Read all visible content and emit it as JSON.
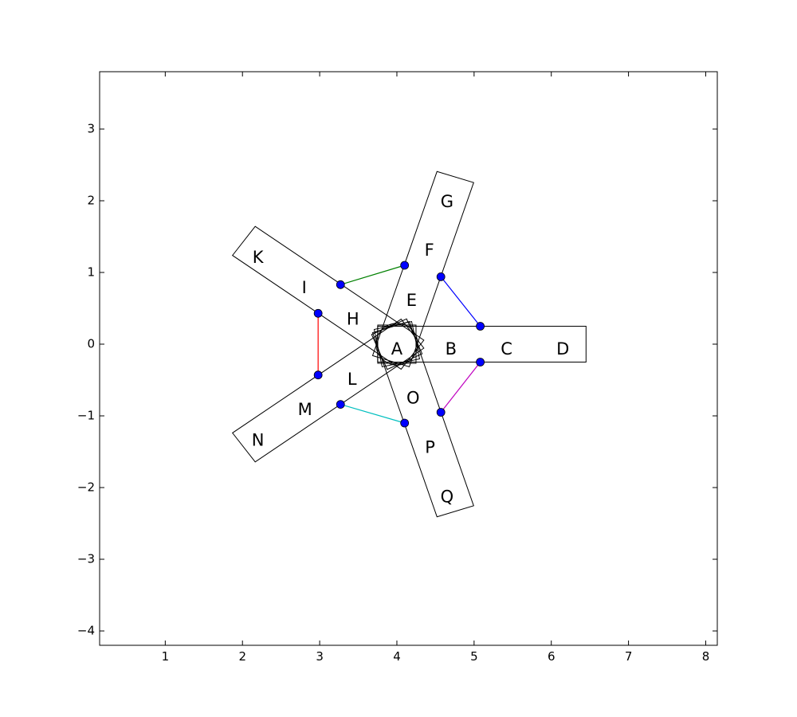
{
  "chart_data": {
    "type": "scatter",
    "title": "",
    "xlabel": "",
    "ylabel": "",
    "xlim": [
      0.15,
      8.15
    ],
    "ylim": [
      -4.2,
      3.8
    ],
    "grid": false,
    "x_ticks": [
      {
        "value": 1,
        "label": "1"
      },
      {
        "value": 2,
        "label": "2"
      },
      {
        "value": 3,
        "label": "3"
      },
      {
        "value": 4,
        "label": "4"
      },
      {
        "value": 5,
        "label": "5"
      },
      {
        "value": 6,
        "label": "6"
      },
      {
        "value": 7,
        "label": "7"
      },
      {
        "value": 8,
        "label": "8"
      }
    ],
    "y_ticks": [
      {
        "value": 3,
        "label": "3"
      },
      {
        "value": 2,
        "label": "2"
      },
      {
        "value": 1,
        "label": "1"
      },
      {
        "value": 0,
        "label": "0"
      },
      {
        "value": -1,
        "label": "−1"
      },
      {
        "value": -2,
        "label": "−2"
      },
      {
        "value": -3,
        "label": "−3"
      },
      {
        "value": -4,
        "label": "−4"
      }
    ],
    "labels": [
      {
        "text": "A",
        "x": 4.0,
        "y": -0.08
      },
      {
        "text": "B",
        "x": 4.7,
        "y": -0.08
      },
      {
        "text": "C",
        "x": 5.42,
        "y": -0.08
      },
      {
        "text": "D",
        "x": 6.15,
        "y": -0.08
      },
      {
        "text": "E",
        "x": 4.19,
        "y": 0.6
      },
      {
        "text": "F",
        "x": 4.42,
        "y": 1.3
      },
      {
        "text": "G",
        "x": 4.65,
        "y": 1.98
      },
      {
        "text": "H",
        "x": 3.43,
        "y": 0.34
      },
      {
        "text": "I",
        "x": 2.8,
        "y": 0.78
      },
      {
        "text": "K",
        "x": 2.2,
        "y": 1.2
      },
      {
        "text": "L",
        "x": 3.42,
        "y": -0.5
      },
      {
        "text": "M",
        "x": 2.81,
        "y": -0.92
      },
      {
        "text": "N",
        "x": 2.2,
        "y": -1.35
      },
      {
        "text": "O",
        "x": 4.21,
        "y": -0.76
      },
      {
        "text": "P",
        "x": 4.43,
        "y": -1.45
      },
      {
        "text": "Q",
        "x": 4.65,
        "y": -2.14
      }
    ],
    "points": [
      {
        "x": 5.08,
        "y": 0.25
      },
      {
        "x": 5.08,
        "y": -0.25
      },
      {
        "x": 4.57,
        "y": 0.94
      },
      {
        "x": 4.1,
        "y": 1.1
      },
      {
        "x": 3.27,
        "y": 0.83
      },
      {
        "x": 2.98,
        "y": 0.43
      },
      {
        "x": 2.98,
        "y": -0.43
      },
      {
        "x": 3.27,
        "y": -0.84
      },
      {
        "x": 4.1,
        "y": -1.1
      },
      {
        "x": 4.57,
        "y": -0.95
      }
    ],
    "connectors": [
      {
        "from": 0,
        "to": 2,
        "color": "#0000ff"
      },
      {
        "from": 3,
        "to": 4,
        "color": "#008000"
      },
      {
        "from": 5,
        "to": 6,
        "color": "#ff0000"
      },
      {
        "from": 7,
        "to": 8,
        "color": "#00bfbf"
      },
      {
        "from": 9,
        "to": 1,
        "color": "#bf00bf"
      }
    ],
    "arms": [
      {
        "center": [
          4.0,
          0.0
        ],
        "angle_deg": 0,
        "length": 2.45,
        "half_width": 0.25
      },
      {
        "center": [
          4.0,
          0.0
        ],
        "angle_deg": 72,
        "length": 2.45,
        "half_width": 0.25
      },
      {
        "center": [
          4.0,
          0.0
        ],
        "angle_deg": 144,
        "length": 2.45,
        "half_width": 0.25
      },
      {
        "center": [
          4.0,
          0.0
        ],
        "angle_deg": 216,
        "length": 2.45,
        "half_width": 0.25
      },
      {
        "center": [
          4.0,
          0.0
        ],
        "angle_deg": 288,
        "length": 2.45,
        "half_width": 0.25
      }
    ],
    "hub_circle": {
      "center": [
        4.0,
        0.0
      ],
      "radius": 0.27
    },
    "marker_color": "#0000ff",
    "outline_color": "#000000"
  }
}
